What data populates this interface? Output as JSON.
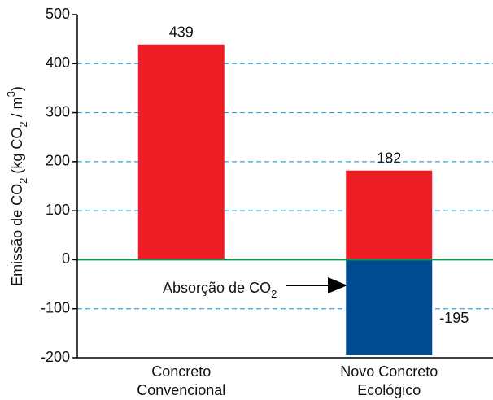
{
  "chart_data": {
    "type": "bar",
    "ylabel": [
      {
        "text": "Emissão de CO"
      },
      {
        "text": "2",
        "shift": "sub"
      },
      {
        "text": " (kg CO"
      },
      {
        "text": "2",
        "shift": "sub"
      },
      {
        "text": " / m"
      },
      {
        "text": "3",
        "shift": "super"
      },
      {
        "text": ")"
      }
    ],
    "categories": [
      [
        "Concreto",
        "Convencional"
      ],
      [
        "Novo Concreto",
        "Ecológico"
      ]
    ],
    "series": [
      {
        "color": "#ee1c25",
        "values": [
          439,
          182
        ]
      },
      {
        "color": "#004a8f",
        "values": [
          null,
          -195
        ]
      }
    ],
    "ylim": [
      -200,
      500
    ],
    "yticks": [
      -200,
      -100,
      0,
      100,
      200,
      300,
      400,
      500
    ],
    "grid": true,
    "grid_color": "#2aa8e0",
    "zero_line_color": "#00a04a",
    "annotation": [
      {
        "text": "Absorção de CO"
      },
      {
        "text": "2",
        "shift": "sub"
      }
    ]
  }
}
